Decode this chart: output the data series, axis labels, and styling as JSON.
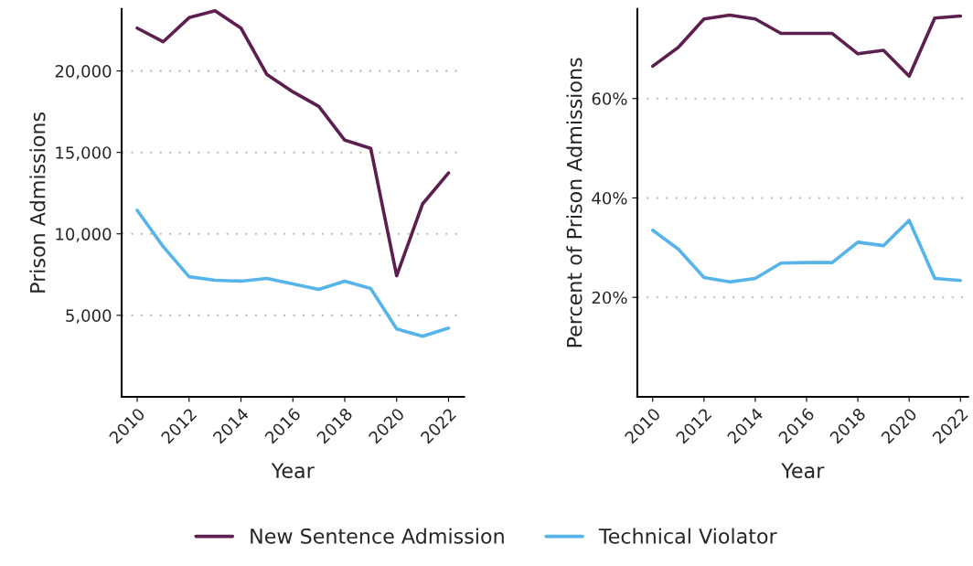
{
  "chart_data": [
    {
      "type": "line",
      "xlabel": "Year",
      "ylabel": "Prison Admissions",
      "x": [
        2010,
        2011,
        2012,
        2013,
        2014,
        2015,
        2016,
        2017,
        2018,
        2019,
        2020,
        2021,
        2022
      ],
      "series": [
        {
          "name": "New Sentence Admission",
          "color": "#5c1f4f",
          "values": [
            22630,
            21790,
            23270,
            23690,
            22630,
            19780,
            18720,
            17820,
            15750,
            15250,
            7430,
            11840,
            13740
          ]
        },
        {
          "name": "Technical Violator",
          "color": "#56b4e9",
          "values": [
            11450,
            9220,
            7370,
            7150,
            7100,
            7260,
            6930,
            6590,
            7100,
            6650,
            4160,
            3710,
            4220
          ]
        }
      ],
      "xlim": [
        2009.4,
        2022.6
      ],
      "ylim": [
        0,
        23800
      ],
      "xticks": [
        2010,
        2012,
        2014,
        2016,
        2018,
        2020,
        2022
      ],
      "yticks": [
        {
          "value": 5000,
          "label": "5,000"
        },
        {
          "value": 10000,
          "label": "10,000"
        },
        {
          "value": 15000,
          "label": "15,000"
        },
        {
          "value": 20000,
          "label": "20,000"
        }
      ],
      "grid": "y",
      "legend": "bottom",
      "marker": "none",
      "line_style": "solid"
    },
    {
      "type": "line",
      "xlabel": "Year",
      "ylabel": "Percent of Prison Admissions",
      "x": [
        2010,
        2011,
        2012,
        2013,
        2014,
        2015,
        2016,
        2017,
        2018,
        2019,
        2020,
        2021,
        2022
      ],
      "series": [
        {
          "color": "#5c1f4f",
          "values": [
            66.5,
            70.3,
            76.0,
            76.8,
            76.0,
            73.1,
            73.1,
            73.1,
            69.0,
            69.7,
            64.5,
            76.2,
            76.6
          ]
        },
        {
          "color": "#56b4e9",
          "values": [
            33.5,
            29.7,
            24.0,
            23.1,
            23.8,
            26.9,
            27.0,
            27.0,
            31.1,
            30.4,
            35.5,
            23.8,
            23.4
          ]
        }
      ],
      "xlim": [
        2009.4,
        2022.3
      ],
      "ylim": [
        0,
        78
      ],
      "xticks": [
        2010,
        2012,
        2014,
        2016,
        2018,
        2020,
        2022
      ],
      "yticks": [
        {
          "value": 20,
          "label": "20%"
        },
        {
          "value": 40,
          "label": "40%"
        },
        {
          "value": 60,
          "label": "60%"
        }
      ],
      "grid": "y",
      "legend": false,
      "marker": "none",
      "line_style": "solid"
    }
  ]
}
